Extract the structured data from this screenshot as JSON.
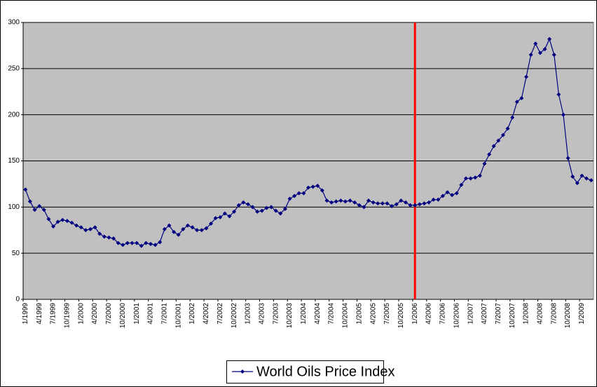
{
  "chart_data": {
    "type": "line",
    "categories": [
      "1/1999",
      null,
      null,
      "4/1999",
      null,
      null,
      "7/1999",
      null,
      null,
      "10/1999",
      null,
      null,
      "1/2000",
      null,
      null,
      "4/2000",
      null,
      null,
      "7/2000",
      null,
      null,
      "10/2000",
      null,
      null,
      "1/2001",
      null,
      null,
      "4/2001",
      null,
      null,
      "7/2001",
      null,
      null,
      "10/2001",
      null,
      null,
      "1/2002",
      null,
      null,
      "4/2002",
      null,
      null,
      "7/2002",
      null,
      null,
      "10/2002",
      null,
      null,
      "1/2003",
      null,
      null,
      "4/2003",
      null,
      null,
      "7/2003",
      null,
      null,
      "10/2003",
      null,
      null,
      "1/2004",
      null,
      null,
      "4/2004",
      null,
      null,
      "7/2004",
      null,
      null,
      "10/2004",
      null,
      null,
      "1/2005",
      null,
      null,
      "4/2005",
      null,
      null,
      "7/2005",
      null,
      null,
      "10/2005",
      null,
      null,
      "1/2006",
      null,
      null,
      "4/2006",
      null,
      null,
      "7/2006",
      null,
      null,
      "10/2006",
      null,
      null,
      "1/2007",
      null,
      null,
      "4/2007",
      null,
      null,
      "7/2007",
      null,
      null,
      "10/2007",
      null,
      null,
      "1/2008",
      null,
      null,
      "4/2008",
      null,
      null,
      "7/2008",
      null,
      null,
      "10/2008",
      null,
      null,
      "1/2009",
      null,
      null
    ],
    "series": [
      {
        "name": "World Oils Price Index",
        "color": "#000080",
        "values": [
          119,
          106,
          97,
          101,
          97,
          87,
          79,
          84,
          86,
          85,
          83,
          80,
          78,
          75,
          76,
          78,
          71,
          68,
          67,
          66,
          61,
          59,
          61,
          61,
          61,
          58,
          61,
          60,
          59,
          62,
          76,
          80,
          73,
          70,
          76,
          80,
          78,
          75,
          75,
          77,
          82,
          88,
          89,
          93,
          90,
          95,
          102,
          105,
          103,
          100,
          95,
          96,
          99,
          100,
          96,
          93,
          98,
          109,
          112,
          115,
          115,
          121,
          122,
          123,
          118,
          107,
          105,
          106,
          107,
          106,
          107,
          105,
          102,
          100,
          107,
          105,
          104,
          104,
          104,
          101,
          103,
          107,
          105,
          102,
          102,
          103,
          104,
          105,
          108,
          108,
          112,
          116,
          113,
          115,
          124,
          131,
          131,
          132,
          134,
          147,
          157,
          166,
          172,
          178,
          185,
          197,
          214,
          218,
          241,
          265,
          277,
          267,
          271,
          282,
          265,
          222,
          200,
          153,
          133,
          126,
          134,
          131,
          129
        ]
      }
    ],
    "ylim": [
      0,
      300
    ],
    "yticks": [
      0,
      50,
      100,
      150,
      200,
      250,
      300
    ],
    "grid": true,
    "legend": "bottom",
    "vline": {
      "at": "1/2006",
      "color": "#ff0000"
    },
    "plot_background": "#c0c0c0"
  }
}
